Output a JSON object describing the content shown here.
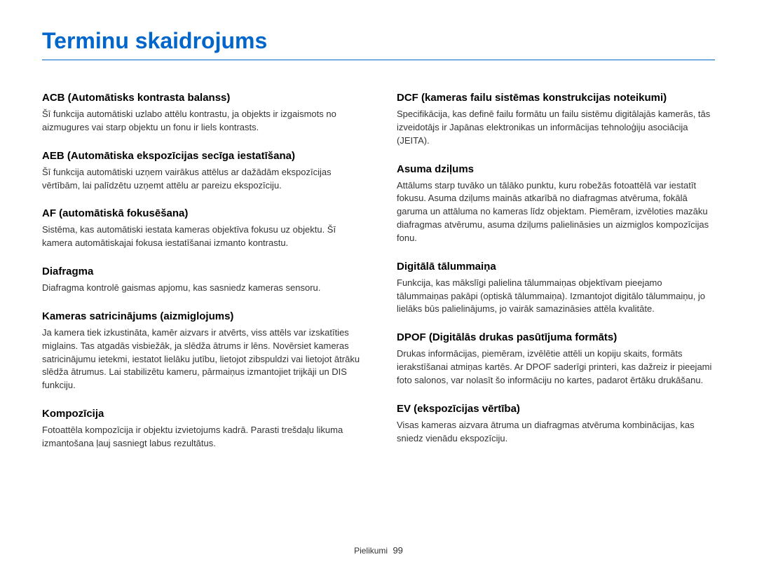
{
  "title": "Terminu skaidrojums",
  "colors": {
    "title": "#0066cc",
    "underline": "#0066cc",
    "heading": "#000000",
    "body": "#333333",
    "background": "#ffffff"
  },
  "left": {
    "items": [
      {
        "heading": "ACB (Automātisks kontrasta balanss)",
        "body": "Šī funkcija automātiski uzlabo attēlu kontrastu, ja objekts ir izgaismots no aizmugures vai starp objektu un fonu ir liels kontrasts."
      },
      {
        "heading": "AEB (Automātiska ekspozīcijas secīga iestatīšana)",
        "body": "Šī funkcija automātiski uzņem vairākus attēlus ar dažādām ekspozīcijas vērtībām, lai palīdzētu uzņemt attēlu ar pareizu ekspozīciju."
      },
      {
        "heading": "AF (automātiskā fokusēšana)",
        "body": "Sistēma, kas automātiski iestata kameras objektīva fokusu uz objektu. Šī kamera automātiskajai fokusa iestatīšanai izmanto kontrastu."
      },
      {
        "heading": "Diafragma",
        "body": "Diafragma kontrolē gaismas apjomu, kas sasniedz kameras sensoru."
      },
      {
        "heading": "Kameras satricinājums (aizmiglojums)",
        "body": "Ja kamera tiek izkustināta, kamēr aizvars ir atvērts, viss attēls var izskatīties miglains. Tas atgadās visbiežāk, ja slēdža ātrums ir lēns. Novērsiet kameras satricinājumu ietekmi, iestatot lielāku jutību, lietojot zibspuldzi vai lietojot ātrāku slēdža ātrumus. Lai stabilizētu kameru, pārmaiņus izmantojiet trijkāji un DIS funkciju."
      },
      {
        "heading": "Kompozīcija",
        "body": "Fotoattēla kompozīcija ir objektu izvietojums kadrā. Parasti trešdaļu likuma izmantošana ļauj sasniegt labus rezultātus."
      }
    ]
  },
  "right": {
    "items": [
      {
        "heading": "DCF (kameras failu sistēmas konstrukcijas noteikumi)",
        "body": "Specifikācija, kas definē failu formātu un failu sistēmu digitālajās kamerās, tās izveidotājs ir Japānas elektronikas un informācijas tehnoloģiju asociācija (JEITA)."
      },
      {
        "heading": "Asuma dziļums",
        "body": "Attālums starp tuvāko un tālāko punktu, kuru robežās fotoattēlā var iestatīt fokusu. Asuma dziļums mainās atkarībā no diafragmas atvēruma, fokālā garuma un attāluma no kameras līdz objektam. Piemēram, izvēloties mazāku diafragmas atvērumu, asuma dziļums palielināsies un aizmiglos kompozīcijas fonu."
      },
      {
        "heading": "Digitālā tālummaiņa",
        "body": "Funkcija, kas mākslīgi palielina tālummaiņas objektīvam pieejamo tālummaiņas pakāpi (optiskā tālummaiņa). Izmantojot digitālo tālummaiņu, jo lielāks būs palielinājums, jo vairāk samazināsies attēla kvalitāte."
      },
      {
        "heading": "DPOF (Digitālās drukas pasūtījuma formāts)",
        "body": "Drukas informācijas, piemēram, izvēlētie attēli un kopiju skaits, formāts ierakstīšanai atmiņas kartēs. Ar DPOF saderīgi printeri, kas dažreiz ir pieejami foto salonos, var nolasīt šo informāciju no kartes, padarot ērtāku drukāšanu."
      },
      {
        "heading": "EV (ekspozīcijas vērtība)",
        "body": "Visas kameras aizvara ātruma un diafragmas atvēruma kombinācijas, kas sniedz vienādu ekspozīciju."
      }
    ]
  },
  "footer": {
    "section": "Pielikumi",
    "page": "99"
  }
}
